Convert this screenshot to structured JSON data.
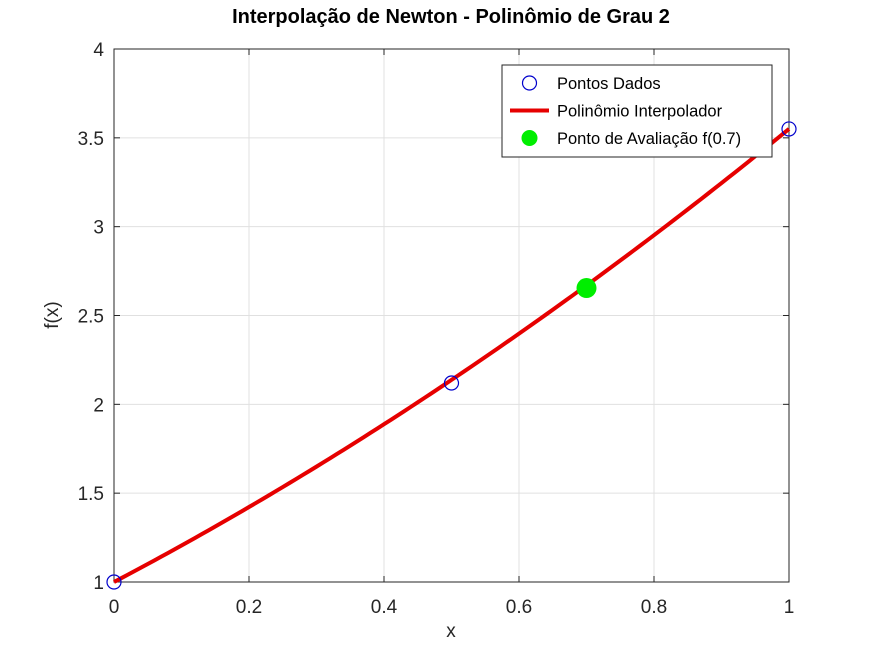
{
  "chart_data": {
    "type": "line",
    "title": "Interpolação de Newton - Polinômio de Grau 2",
    "xlabel": "x",
    "ylabel": "f(x)",
    "xlim": [
      0,
      1
    ],
    "ylim": [
      1,
      4
    ],
    "x_ticks": [
      0,
      0.2,
      0.4,
      0.6,
      0.8,
      1
    ],
    "x_tick_labels": [
      "0",
      "0.2",
      "0.4",
      "0.6",
      "0.8",
      "1"
    ],
    "y_ticks": [
      1,
      1.5,
      2,
      2.5,
      3,
      3.5,
      4
    ],
    "y_tick_labels": [
      "1",
      "1.5",
      "2",
      "2.5",
      "3",
      "3.5",
      "4"
    ],
    "grid": true,
    "legend_position": "top-right",
    "series": [
      {
        "name": "Pontos Dados",
        "kind": "markers",
        "marker": "open-circle",
        "color": "#0000cc",
        "x": [
          0,
          0.5,
          1
        ],
        "y": [
          1.0,
          2.12,
          3.55
        ]
      },
      {
        "name": "Polinômio Interpolador",
        "kind": "line",
        "color": "#e60000",
        "coefficients": [
          1.0,
          2.0,
          0.55
        ],
        "x_range": [
          0,
          1
        ]
      },
      {
        "name": "Ponto de Avaliação f(0.7)",
        "kind": "markers",
        "marker": "filled-circle",
        "color": "#00ee00",
        "x": [
          0.7
        ],
        "y": [
          2.6546
        ]
      }
    ]
  }
}
